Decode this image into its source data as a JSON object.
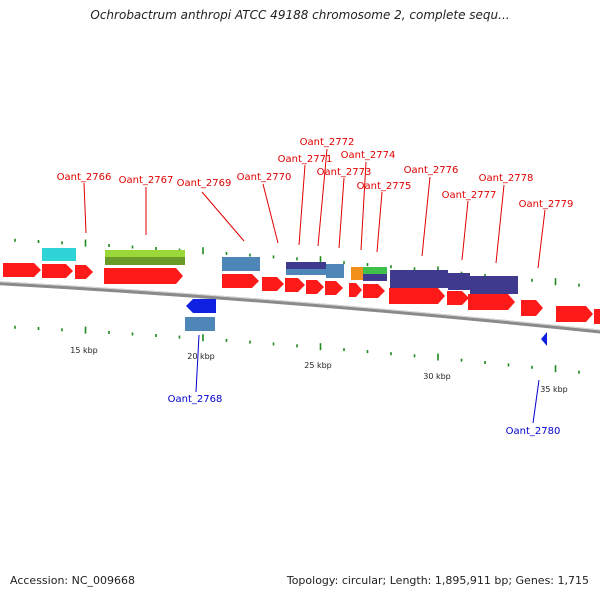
{
  "title": "Ochrobactrum anthropi ATCC 49188 chromosome 2, complete sequ...",
  "footer": {
    "accession": "Accession: NC_009668",
    "summary": "Topology: circular; Length: 1,895,911 bp; Genes: 1,715"
  },
  "colors": {
    "label_red": "#e00000",
    "label_blue": "#0000cc",
    "backbone": "#8a8a8a",
    "tick": "#1f8a1f",
    "arrow_red": "#ff1a1a",
    "cyan": "#2fd4d8",
    "lime": "#9ad83a",
    "steel": "#4f86b8",
    "indigo": "#3f3a8e",
    "orange": "#f0901a",
    "green": "#3fc04a",
    "blue": "#1020e0"
  },
  "scale_labels": [
    "15 kbp",
    "20 kbp",
    "25 kbp",
    "30 kbp",
    "35 kbp"
  ],
  "gene_labels": {
    "top": [
      "Oant_2766",
      "Oant_2767",
      "Oant_2769",
      "Oant_2770",
      "Oant_2771",
      "Oant_2772",
      "Oant_2773",
      "Oant_2774",
      "Oant_2775",
      "Oant_2776",
      "Oant_2777",
      "Oant_2778",
      "Oant_2779"
    ],
    "bottom": [
      "Oant_2768",
      "Oant_2780"
    ]
  }
}
